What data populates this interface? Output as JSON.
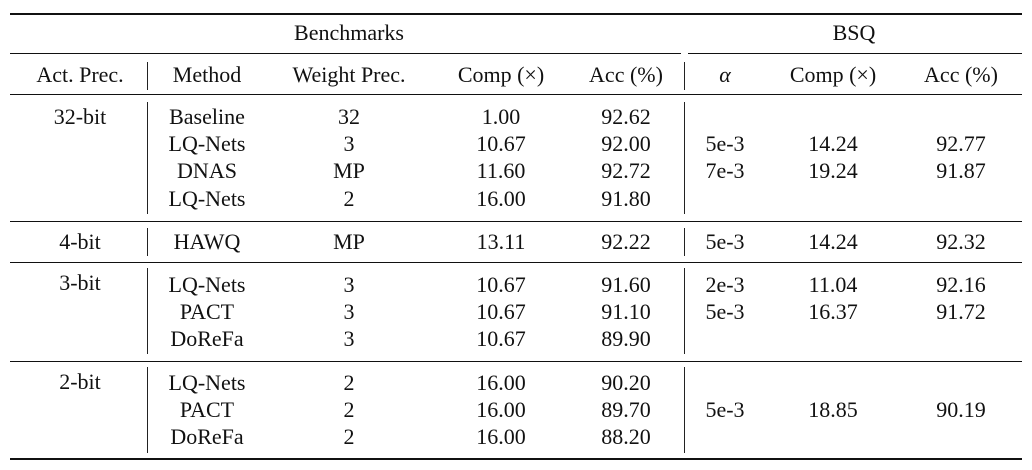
{
  "group_headers": {
    "benchmarks": "Benchmarks",
    "bsq": "BSQ"
  },
  "columns": {
    "act_prec": "Act. Prec.",
    "method": "Method",
    "weight_prec": "Weight Prec.",
    "comp": "Comp (×)",
    "acc": "Acc (%)",
    "alpha": "α",
    "bsq_comp": "Comp (×)",
    "bsq_acc": "Acc (%)"
  },
  "groups": [
    {
      "act_prec": "32-bit",
      "rows": [
        {
          "method": "Baseline",
          "weight_prec": "32",
          "comp": "1.00",
          "acc": "92.62"
        },
        {
          "method": "LQ-Nets",
          "weight_prec": "3",
          "comp": "10.67",
          "acc": "92.00"
        },
        {
          "method": "DNAS",
          "weight_prec": "MP",
          "comp": "11.60",
          "acc": "92.72"
        },
        {
          "method": "LQ-Nets",
          "weight_prec": "2",
          "comp": "16.00",
          "acc": "91.80"
        }
      ],
      "bsq": [
        {
          "alpha": "5e-3",
          "comp": "14.24",
          "acc": "92.77"
        },
        {
          "alpha": "7e-3",
          "comp": "19.24",
          "acc": "91.87"
        }
      ]
    },
    {
      "act_prec": "4-bit",
      "rows": [
        {
          "method": "HAWQ",
          "weight_prec": "MP",
          "comp": "13.11",
          "acc": "92.22"
        }
      ],
      "bsq": [
        {
          "alpha": "5e-3",
          "comp": "14.24",
          "acc": "92.32"
        }
      ]
    },
    {
      "act_prec": "3-bit",
      "rows": [
        {
          "method": "LQ-Nets",
          "weight_prec": "3",
          "comp": "10.67",
          "acc": "91.60"
        },
        {
          "method": "PACT",
          "weight_prec": "3",
          "comp": "10.67",
          "acc": "91.10"
        },
        {
          "method": "DoReFa",
          "weight_prec": "3",
          "comp": "10.67",
          "acc": "89.90"
        }
      ],
      "bsq": [
        {
          "alpha": "2e-3",
          "comp": "11.04",
          "acc": "92.16"
        },
        {
          "alpha": "5e-3",
          "comp": "16.37",
          "acc": "91.72"
        }
      ]
    },
    {
      "act_prec": "2-bit",
      "rows": [
        {
          "method": "LQ-Nets",
          "weight_prec": "2",
          "comp": "16.00",
          "acc": "90.20"
        },
        {
          "method": "PACT",
          "weight_prec": "2",
          "comp": "16.00",
          "acc": "89.70"
        },
        {
          "method": "DoReFa",
          "weight_prec": "2",
          "comp": "16.00",
          "acc": "88.20"
        }
      ],
      "bsq": [
        {
          "alpha": "5e-3",
          "comp": "18.85",
          "acc": "90.19"
        }
      ]
    }
  ]
}
